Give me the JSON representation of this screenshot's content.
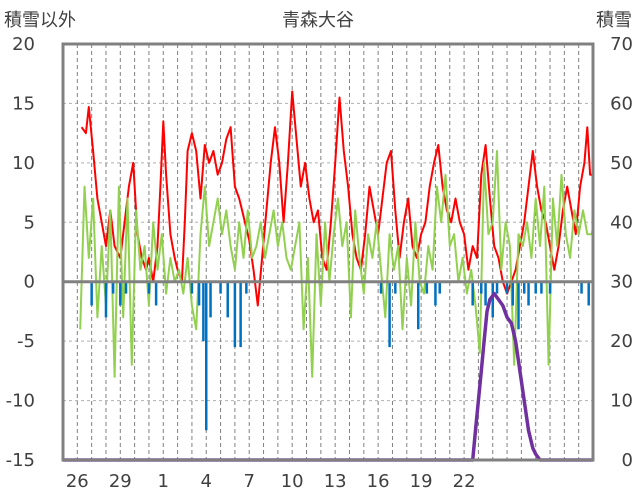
{
  "chart_data": {
    "type": "line",
    "title": "青森大谷",
    "left_axis_label": "積雪以外",
    "right_axis_label": "積雪",
    "left_axis": {
      "min": -15,
      "max": 20,
      "ticks": [
        "20",
        "15",
        "10",
        "5",
        "0",
        "-5",
        "-10",
        "-15"
      ]
    },
    "right_axis": {
      "min": 0,
      "max": 70,
      "ticks": [
        "70",
        "60",
        "50",
        "40",
        "30",
        "20",
        "10",
        "0"
      ]
    },
    "x_ticks": [
      "26",
      "29",
      "1",
      "4",
      "7",
      "10",
      "13",
      "16",
      "19",
      "22"
    ],
    "x_range": [
      0,
      37
    ],
    "grid": "dashed vertical lines every day, horizontal lines every 5 units",
    "colors": {
      "red_series": "#ff0000",
      "green_series": "#92d050",
      "blue_series": "#0070c0",
      "purple_series": "#7030a0",
      "axis": "#808080"
    },
    "series": [
      {
        "color": "#ff0000",
        "axis": "left",
        "points": [
          [
            1.3,
            13
          ],
          [
            1.6,
            12.5
          ],
          [
            1.8,
            14.7
          ],
          [
            2.1,
            11
          ],
          [
            2.4,
            7
          ],
          [
            2.7,
            5
          ],
          [
            3.0,
            3
          ],
          [
            3.3,
            6
          ],
          [
            3.6,
            3
          ],
          [
            4.0,
            2
          ],
          [
            4.3,
            5
          ],
          [
            4.6,
            8
          ],
          [
            4.9,
            10
          ],
          [
            5.2,
            4
          ],
          [
            5.5,
            2
          ],
          [
            5.8,
            1
          ],
          [
            6.0,
            2
          ],
          [
            6.3,
            0
          ],
          [
            6.6,
            3
          ],
          [
            6.8,
            8
          ],
          [
            7.0,
            13.5
          ],
          [
            7.2,
            9
          ],
          [
            7.5,
            4
          ],
          [
            7.8,
            2
          ],
          [
            8.0,
            1
          ],
          [
            8.3,
            0
          ],
          [
            8.5,
            5
          ],
          [
            8.7,
            11
          ],
          [
            9.0,
            12.5
          ],
          [
            9.3,
            11
          ],
          [
            9.6,
            7
          ],
          [
            9.9,
            11.5
          ],
          [
            10.2,
            10
          ],
          [
            10.5,
            11
          ],
          [
            10.8,
            9
          ],
          [
            11.1,
            10
          ],
          [
            11.4,
            12
          ],
          [
            11.7,
            13
          ],
          [
            12.0,
            8
          ],
          [
            12.3,
            7
          ],
          [
            12.5,
            6
          ],
          [
            13.0,
            3.5
          ],
          [
            13.3,
            1
          ],
          [
            13.6,
            -2
          ],
          [
            13.9,
            2
          ],
          [
            14.2,
            6
          ],
          [
            14.5,
            10
          ],
          [
            14.8,
            13
          ],
          [
            15.1,
            10
          ],
          [
            15.4,
            5
          ],
          [
            15.7,
            10
          ],
          [
            16.0,
            16
          ],
          [
            16.3,
            12
          ],
          [
            16.6,
            8
          ],
          [
            16.9,
            10
          ],
          [
            17.2,
            7
          ],
          [
            17.5,
            5
          ],
          [
            17.8,
            6
          ],
          [
            18.1,
            2
          ],
          [
            18.4,
            1
          ],
          [
            18.7,
            5
          ],
          [
            19.0,
            10
          ],
          [
            19.3,
            15.5
          ],
          [
            19.6,
            11
          ],
          [
            19.9,
            8
          ],
          [
            20.2,
            4
          ],
          [
            20.5,
            2
          ],
          [
            20.8,
            1
          ],
          [
            21.1,
            4
          ],
          [
            21.4,
            8
          ],
          [
            21.7,
            6
          ],
          [
            22.0,
            4
          ],
          [
            22.3,
            7
          ],
          [
            22.6,
            10
          ],
          [
            22.9,
            11
          ],
          [
            23.2,
            6
          ],
          [
            23.5,
            2
          ],
          [
            23.8,
            5
          ],
          [
            24.1,
            7
          ],
          [
            24.4,
            3
          ],
          [
            24.7,
            2
          ],
          [
            25.0,
            4
          ],
          [
            25.3,
            5
          ],
          [
            25.6,
            8
          ],
          [
            25.9,
            10
          ],
          [
            26.2,
            11.5
          ],
          [
            26.5,
            8
          ],
          [
            26.8,
            6
          ],
          [
            27.1,
            5
          ],
          [
            27.4,
            7
          ],
          [
            27.7,
            5
          ],
          [
            28.0,
            4
          ],
          [
            28.3,
            1
          ],
          [
            28.6,
            3
          ],
          [
            28.9,
            2
          ],
          [
            29.2,
            9
          ],
          [
            29.5,
            11.5
          ],
          [
            29.8,
            7
          ],
          [
            30.1,
            3
          ],
          [
            30.4,
            2
          ],
          [
            30.7,
            0
          ],
          [
            31.0,
            -1
          ],
          [
            31.3,
            0
          ],
          [
            31.6,
            1
          ],
          [
            31.9,
            3
          ],
          [
            32.2,
            5
          ],
          [
            32.5,
            8
          ],
          [
            32.8,
            11
          ],
          [
            33.1,
            8
          ],
          [
            33.4,
            6
          ],
          [
            33.7,
            5
          ],
          [
            34.0,
            3
          ],
          [
            34.3,
            1
          ],
          [
            34.6,
            3
          ],
          [
            34.9,
            6
          ],
          [
            35.2,
            8
          ],
          [
            35.5,
            6
          ],
          [
            35.8,
            4
          ],
          [
            36.1,
            8
          ],
          [
            36.4,
            10
          ],
          [
            36.6,
            13
          ],
          [
            36.8,
            9
          ],
          [
            37.0,
            9
          ]
        ]
      },
      {
        "color": "#92d050",
        "axis": "left",
        "points": [
          [
            1.2,
            -4
          ],
          [
            1.5,
            8
          ],
          [
            1.8,
            2
          ],
          [
            2.1,
            7
          ],
          [
            2.4,
            -3
          ],
          [
            2.7,
            3
          ],
          [
            3.0,
            -2
          ],
          [
            3.3,
            6
          ],
          [
            3.6,
            -8
          ],
          [
            3.9,
            8
          ],
          [
            4.2,
            -3
          ],
          [
            4.5,
            7
          ],
          [
            4.8,
            -7
          ],
          [
            5.1,
            6
          ],
          [
            5.4,
            1
          ],
          [
            5.7,
            3
          ],
          [
            6.0,
            -2
          ],
          [
            6.3,
            5
          ],
          [
            6.6,
            1
          ],
          [
            6.9,
            4
          ],
          [
            7.2,
            -1
          ],
          [
            7.5,
            2
          ],
          [
            7.8,
            0
          ],
          [
            8.1,
            1
          ],
          [
            8.4,
            -1
          ],
          [
            8.7,
            2
          ],
          [
            9.0,
            -2
          ],
          [
            9.3,
            -4
          ],
          [
            9.6,
            4
          ],
          [
            9.9,
            8
          ],
          [
            10.2,
            3
          ],
          [
            10.5,
            5
          ],
          [
            10.8,
            7
          ],
          [
            11.1,
            4
          ],
          [
            11.4,
            6
          ],
          [
            11.7,
            3
          ],
          [
            12.0,
            1
          ],
          [
            12.3,
            5
          ],
          [
            12.6,
            2
          ],
          [
            12.9,
            6
          ],
          [
            13.2,
            2
          ],
          [
            13.5,
            3
          ],
          [
            13.8,
            5
          ],
          [
            14.1,
            2
          ],
          [
            14.4,
            4
          ],
          [
            14.7,
            6
          ],
          [
            15.0,
            3
          ],
          [
            15.3,
            5
          ],
          [
            15.6,
            2
          ],
          [
            15.9,
            1
          ],
          [
            16.2,
            3
          ],
          [
            16.5,
            5
          ],
          [
            16.8,
            -4
          ],
          [
            17.1,
            2
          ],
          [
            17.4,
            -8
          ],
          [
            17.7,
            4
          ],
          [
            18.0,
            -2
          ],
          [
            18.3,
            5
          ],
          [
            18.6,
            0
          ],
          [
            18.9,
            4
          ],
          [
            19.2,
            7
          ],
          [
            19.5,
            3
          ],
          [
            19.8,
            5
          ],
          [
            20.1,
            -3
          ],
          [
            20.4,
            6
          ],
          [
            20.7,
            2
          ],
          [
            21.0,
            -1
          ],
          [
            21.3,
            4
          ],
          [
            21.6,
            2
          ],
          [
            21.9,
            5
          ],
          [
            22.2,
            1
          ],
          [
            22.5,
            -3
          ],
          [
            22.8,
            4
          ],
          [
            23.1,
            1
          ],
          [
            23.4,
            3
          ],
          [
            23.7,
            -4
          ],
          [
            24.0,
            2
          ],
          [
            24.3,
            -2
          ],
          [
            24.6,
            5
          ],
          [
            24.9,
            0
          ],
          [
            25.2,
            -1
          ],
          [
            25.5,
            3
          ],
          [
            25.8,
            1
          ],
          [
            26.1,
            8
          ],
          [
            26.4,
            5
          ],
          [
            26.7,
            9
          ],
          [
            27.0,
            3
          ],
          [
            27.3,
            4
          ],
          [
            27.6,
            0
          ],
          [
            27.9,
            2
          ],
          [
            28.2,
            -1
          ],
          [
            28.5,
            1
          ],
          [
            28.8,
            -2
          ],
          [
            29.1,
            -6
          ],
          [
            29.4,
            10
          ],
          [
            29.7,
            4
          ],
          [
            30.0,
            5
          ],
          [
            30.3,
            11
          ],
          [
            30.6,
            1
          ],
          [
            30.9,
            5
          ],
          [
            31.2,
            3
          ],
          [
            31.5,
            -7
          ],
          [
            31.8,
            4
          ],
          [
            32.1,
            3
          ],
          [
            32.4,
            5
          ],
          [
            32.7,
            2
          ],
          [
            33.0,
            7
          ],
          [
            33.3,
            3
          ],
          [
            33.6,
            8
          ],
          [
            33.9,
            -7
          ],
          [
            34.2,
            7
          ],
          [
            34.5,
            3
          ],
          [
            34.8,
            9
          ],
          [
            35.1,
            4
          ],
          [
            35.4,
            2
          ],
          [
            35.7,
            6
          ],
          [
            36.0,
            4
          ],
          [
            36.3,
            6
          ],
          [
            36.6,
            4
          ],
          [
            36.9,
            4
          ],
          [
            37.0,
            4.5
          ]
        ]
      },
      {
        "color": "#0070c0",
        "axis": "left",
        "style": "bars",
        "points": [
          [
            2.0,
            -2
          ],
          [
            3.0,
            -3
          ],
          [
            3.5,
            -1
          ],
          [
            4.0,
            -2
          ],
          [
            4.4,
            -1
          ],
          [
            6.0,
            -1
          ],
          [
            6.5,
            -2
          ],
          [
            9.0,
            -1
          ],
          [
            9.5,
            -2
          ],
          [
            9.8,
            -5
          ],
          [
            10.0,
            -12.5
          ],
          [
            10.3,
            -3
          ],
          [
            11.0,
            -1
          ],
          [
            11.5,
            -3
          ],
          [
            12.0,
            -5.5
          ],
          [
            12.4,
            -5.5
          ],
          [
            12.8,
            -1
          ],
          [
            22.2,
            -1
          ],
          [
            22.8,
            -5.5
          ],
          [
            23.2,
            -1
          ],
          [
            24.8,
            -4
          ],
          [
            25.4,
            -1
          ],
          [
            26.0,
            -2
          ],
          [
            26.3,
            -1
          ],
          [
            28.6,
            -2
          ],
          [
            29.2,
            -1
          ],
          [
            29.5,
            -2
          ],
          [
            30.0,
            -3
          ],
          [
            30.3,
            -1
          ],
          [
            31.0,
            -1
          ],
          [
            31.4,
            -2
          ],
          [
            31.8,
            -4
          ],
          [
            32.2,
            -1
          ],
          [
            32.5,
            -2
          ],
          [
            33.0,
            -1
          ],
          [
            33.4,
            -1
          ],
          [
            34.0,
            -1
          ],
          [
            36.2,
            -1
          ],
          [
            36.7,
            -2
          ]
        ]
      },
      {
        "color": "#7030a0",
        "axis": "right",
        "points": [
          [
            0,
            0
          ],
          [
            28.6,
            0
          ],
          [
            28.8,
            5
          ],
          [
            29.0,
            10
          ],
          [
            29.2,
            15
          ],
          [
            29.4,
            20
          ],
          [
            29.6,
            25
          ],
          [
            29.8,
            27
          ],
          [
            30.1,
            28
          ],
          [
            30.4,
            27
          ],
          [
            30.7,
            26
          ],
          [
            31.0,
            24
          ],
          [
            31.3,
            23
          ],
          [
            31.6,
            20
          ],
          [
            31.9,
            15
          ],
          [
            32.2,
            10
          ],
          [
            32.5,
            5
          ],
          [
            32.8,
            2
          ],
          [
            33.0,
            1
          ],
          [
            33.3,
            0
          ],
          [
            37,
            0
          ]
        ]
      }
    ]
  }
}
